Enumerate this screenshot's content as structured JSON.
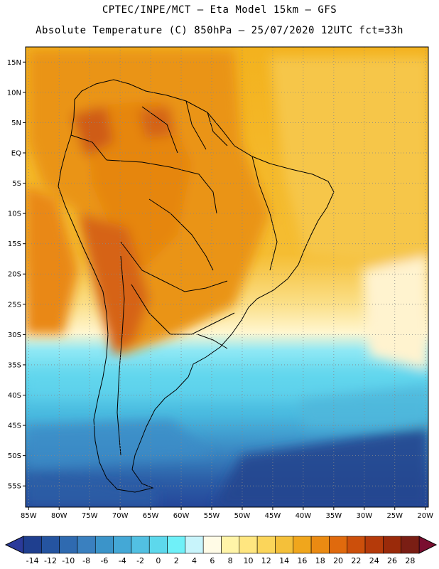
{
  "header": {
    "line1": "CPTEC/INPE/MCT –  Eta Model 15km – GFS",
    "line2": "Absolute Temperature (C) 850hPa – 25/07/2020 12UTC fct=33h"
  },
  "map": {
    "lat_labels": [
      "15N",
      "10N",
      "5N",
      "EQ",
      "5S",
      "10S",
      "15S",
      "20S",
      "25S",
      "30S",
      "35S",
      "40S",
      "45S",
      "50S",
      "55S"
    ],
    "lon_labels": [
      "85W",
      "80W",
      "75W",
      "70W",
      "65W",
      "60W",
      "55W",
      "50W",
      "45W",
      "40W",
      "35W",
      "30W",
      "25W",
      "20W"
    ],
    "lat_range": [
      17.5,
      -58.5
    ],
    "lon_range": [
      -85.5,
      -19.5
    ]
  },
  "colorbar": {
    "labels": [
      "-14",
      "-12",
      "-10",
      "-8",
      "-6",
      "-4",
      "-2",
      "0",
      "2",
      "4",
      "6",
      "8",
      "10",
      "12",
      "14",
      "16",
      "18",
      "20",
      "22",
      "24",
      "26",
      "28"
    ],
    "colors": [
      "#1f3f8f",
      "#2554a0",
      "#2f6ab0",
      "#3a80bf",
      "#3b94c9",
      "#44a8d6",
      "#52c0e2",
      "#5dd8ec",
      "#6ff0f8",
      "#c8f4fb",
      "#fffbe6",
      "#fff4a8",
      "#ffe680",
      "#fbd55a",
      "#f4c03a",
      "#f0a61c",
      "#ea8a12",
      "#e06a0d",
      "#cc4f0b",
      "#b53a0a",
      "#9a2a0a",
      "#7a1e14"
    ],
    "under_color": "#2b3a9a",
    "over_color": "#7a0e30"
  }
}
